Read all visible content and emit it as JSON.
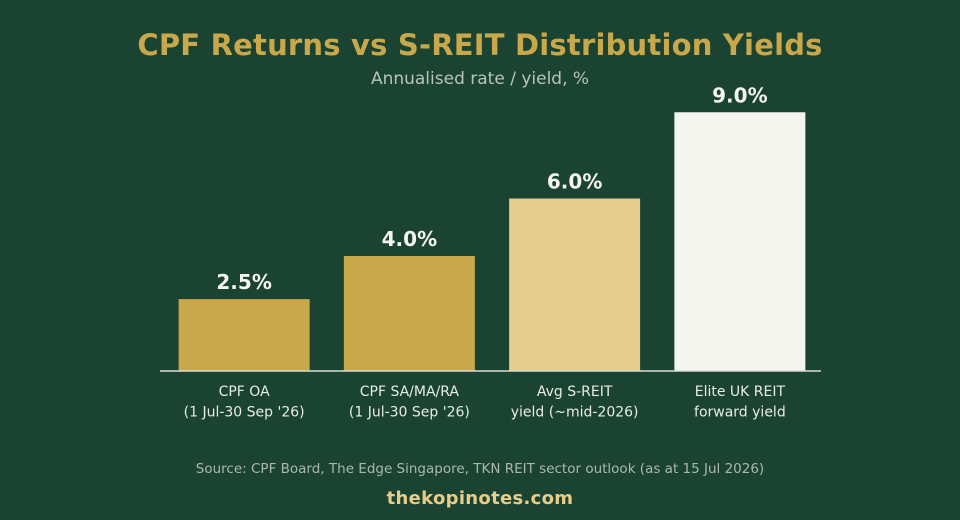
{
  "chart_data": {
    "type": "bar",
    "title": "CPF Returns vs S-REIT Distribution Yields",
    "subtitle": "Annualised rate / yield, %",
    "ylim": [
      0,
      10
    ],
    "grid": false,
    "bars": [
      {
        "label_lines": [
          "CPF OA",
          "(1 Jul-30 Sep '26)"
        ],
        "value": 2.5,
        "value_label": "2.5%",
        "color": "#c9a84c"
      },
      {
        "label_lines": [
          "CPF SA/MA/RA",
          "(1 Jul-30 Sep '26)"
        ],
        "value": 4.0,
        "value_label": "4.0%",
        "color": "#c9a84c"
      },
      {
        "label_lines": [
          "Avg S-REIT",
          "yield (~mid-2026)"
        ],
        "value": 6.0,
        "value_label": "6.0%",
        "color": "#e6cc8c"
      },
      {
        "label_lines": [
          "Elite UK REIT",
          "forward yield"
        ],
        "value": 9.0,
        "value_label": "9.0%",
        "color": "#f5f5f0"
      }
    ]
  },
  "footer": {
    "source": "Source: CPF Board, The Edge Singapore, TKN REIT sector outlook (as at 15 Jul 2026)",
    "brand": "thekopinotes.com"
  },
  "colors": {
    "background": "#1b4332",
    "title": "#c9a84c",
    "axis": "#d9dcd6",
    "value_label": "#f5f5f0",
    "tick_label": "#e8ece6"
  }
}
